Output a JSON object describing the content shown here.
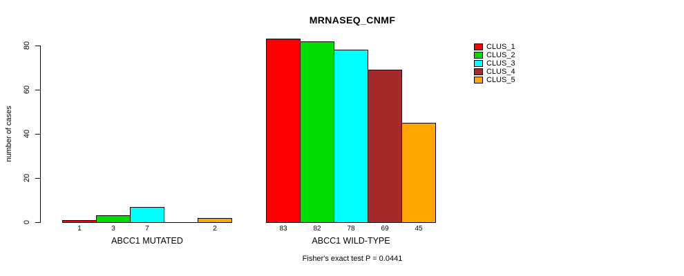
{
  "title": "MRNASEQ_CNMF",
  "footer": "Fisher's exact test P = 0.0441",
  "chart_data": {
    "type": "bar",
    "title": "MRNASEQ_CNMF",
    "ylabel": "number of cases",
    "xlabel": "",
    "ylim": [
      0,
      85
    ],
    "yticks": [
      0,
      20,
      40,
      60,
      80
    ],
    "grid": false,
    "legend_position": "right",
    "series_names": [
      "CLUS_1",
      "CLUS_2",
      "CLUS_3",
      "CLUS_4",
      "CLUS_5"
    ],
    "colors": [
      "#FF0000",
      "#00DC00",
      "#00FFFF",
      "#A52A2A",
      "#FFA500"
    ],
    "groups": [
      {
        "label": "ABCC1 MUTATED",
        "values": [
          1,
          3,
          7,
          0,
          2
        ],
        "value_labels": [
          "1",
          "3",
          "7",
          "",
          "2"
        ]
      },
      {
        "label": "ABCC1 WILD-TYPE",
        "values": [
          83,
          82,
          78,
          69,
          45
        ],
        "value_labels": [
          "83",
          "82",
          "78",
          "69",
          "45"
        ]
      }
    ],
    "annotation": "Fisher's exact test P = 0.0441"
  }
}
